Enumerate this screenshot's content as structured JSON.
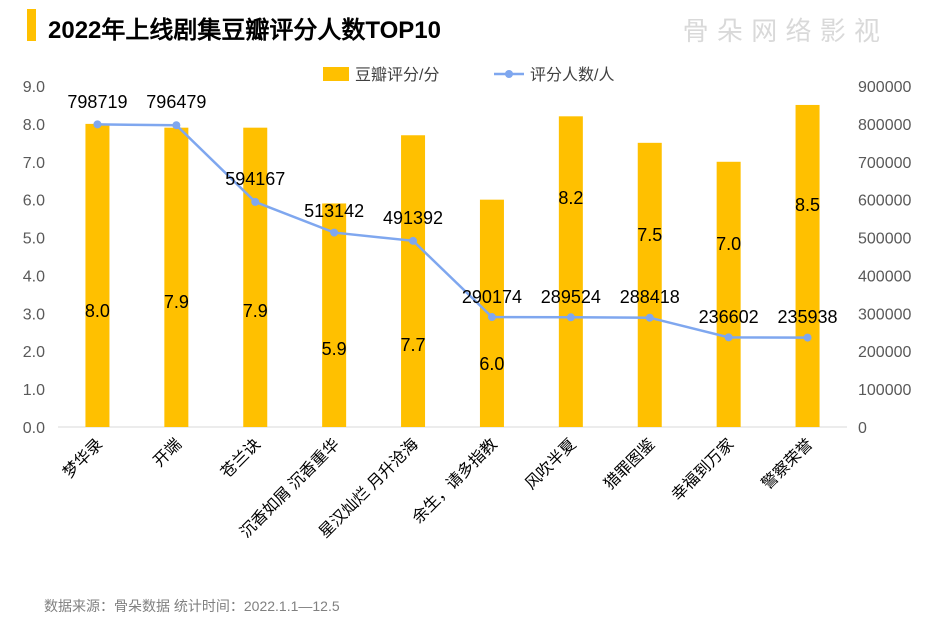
{
  "title": "2022年上线剧集豆瓣评分人数TOP10",
  "source": "数据来源：骨朵数据   统计时间：2022.1.1—12.5",
  "watermark": "骨 朵 网 络 影 视",
  "chart_data": {
    "type": "bar+line",
    "categories": [
      "梦华录",
      "开端",
      "苍兰诀",
      "沉香如屑 沉香重华",
      "星汉灿烂 月升沧海",
      "余生，请多指教",
      "风吹半夏",
      "猎罪图鉴",
      "幸福到万家",
      "警察荣誉"
    ],
    "series": [
      {
        "name": "豆瓣评分/分",
        "type": "bar",
        "axis": "left",
        "color": "#FFC000",
        "values": [
          8.0,
          7.9,
          7.9,
          5.9,
          7.7,
          6.0,
          8.2,
          7.5,
          7.0,
          8.5
        ]
      },
      {
        "name": "评分人数/人",
        "type": "line",
        "axis": "right",
        "color": "#7FA7EF",
        "values": [
          798719,
          796479,
          594167,
          513142,
          491392,
          290174,
          289524,
          288418,
          236602,
          235938
        ]
      }
    ],
    "left_axis": {
      "range": [
        0,
        9
      ],
      "ticks": [
        "0.0",
        "1.0",
        "2.0",
        "3.0",
        "4.0",
        "5.0",
        "6.0",
        "7.0",
        "8.0",
        "9.0"
      ]
    },
    "right_axis": {
      "range": [
        0,
        900000
      ],
      "ticks": [
        "0",
        "100000",
        "200000",
        "300000",
        "400000",
        "500000",
        "600000",
        "700000",
        "800000",
        "900000"
      ]
    },
    "legend": "top",
    "grid": false
  }
}
